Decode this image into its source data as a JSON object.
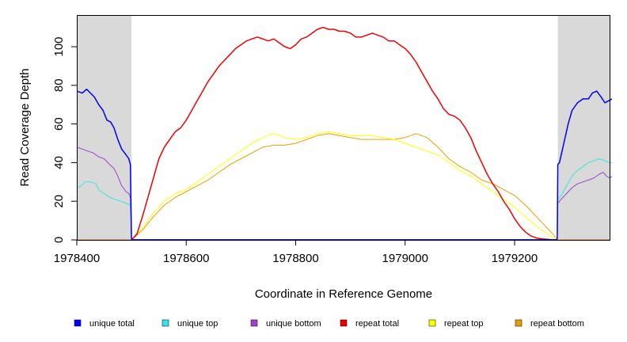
{
  "chart_data": {
    "type": "line",
    "xlabel": "Coordinate in Reference Genome",
    "ylabel": "Read Coverage Depth",
    "xlim": [
      1978380,
      1979380
    ],
    "ylim": [
      0,
      115
    ],
    "x_ticks": [
      1978400,
      1978600,
      1978800,
      1979000,
      1979200
    ],
    "y_ticks": [
      0,
      20,
      40,
      60,
      80,
      100
    ],
    "shaded_regions": [
      [
        1978400,
        1978500
      ],
      [
        1979279,
        1979380
      ]
    ],
    "shade_color": "#d9d9d9",
    "legend_position": "bottom",
    "series": [
      {
        "name": "unique total",
        "color": "#0000ee",
        "width": 1.5,
        "points": [
          [
            1978400,
            77
          ],
          [
            1978410,
            76
          ],
          [
            1978418,
            78
          ],
          [
            1978425,
            76
          ],
          [
            1978432,
            74
          ],
          [
            1978440,
            70
          ],
          [
            1978448,
            67
          ],
          [
            1978455,
            62
          ],
          [
            1978462,
            61
          ],
          [
            1978468,
            58
          ],
          [
            1978475,
            52
          ],
          [
            1978482,
            47
          ],
          [
            1978490,
            44
          ],
          [
            1978495,
            42
          ],
          [
            1978498,
            39
          ],
          [
            1978500,
            0
          ],
          [
            1978501,
            0
          ],
          [
            1979278,
            0
          ],
          [
            1979279,
            39
          ],
          [
            1979282,
            40
          ],
          [
            1979290,
            50
          ],
          [
            1979298,
            60
          ],
          [
            1979305,
            67
          ],
          [
            1979315,
            71
          ],
          [
            1979325,
            73
          ],
          [
            1979335,
            73
          ],
          [
            1979342,
            76
          ],
          [
            1979350,
            77
          ],
          [
            1979358,
            74
          ],
          [
            1979365,
            71
          ],
          [
            1979372,
            72
          ],
          [
            1979378,
            73
          ]
        ]
      },
      {
        "name": "unique top",
        "color": "#33e5e5",
        "width": 1,
        "points": [
          [
            1978400,
            27
          ],
          [
            1978408,
            28
          ],
          [
            1978415,
            30
          ],
          [
            1978425,
            30
          ],
          [
            1978435,
            29
          ],
          [
            1978440,
            26
          ],
          [
            1978450,
            24
          ],
          [
            1978460,
            22
          ],
          [
            1978470,
            21
          ],
          [
            1978480,
            20
          ],
          [
            1978490,
            19
          ],
          [
            1978498,
            18
          ],
          [
            1978500,
            0
          ],
          [
            1979278,
            0
          ],
          [
            1979279,
            21
          ],
          [
            1979285,
            23
          ],
          [
            1979295,
            28
          ],
          [
            1979305,
            33
          ],
          [
            1979315,
            36
          ],
          [
            1979325,
            38
          ],
          [
            1979335,
            40
          ],
          [
            1979345,
            41
          ],
          [
            1979355,
            42
          ],
          [
            1979365,
            41
          ],
          [
            1979372,
            40
          ],
          [
            1979378,
            40
          ]
        ]
      },
      {
        "name": "unique bottom",
        "color": "#a040d0",
        "width": 1,
        "points": [
          [
            1978400,
            48
          ],
          [
            1978410,
            47
          ],
          [
            1978420,
            46
          ],
          [
            1978430,
            45
          ],
          [
            1978440,
            43
          ],
          [
            1978450,
            42
          ],
          [
            1978460,
            39
          ],
          [
            1978468,
            37
          ],
          [
            1978475,
            33
          ],
          [
            1978482,
            28
          ],
          [
            1978490,
            25
          ],
          [
            1978495,
            24
          ],
          [
            1978498,
            22
          ],
          [
            1978500,
            0
          ],
          [
            1979278,
            0
          ],
          [
            1979279,
            19
          ],
          [
            1979285,
            21
          ],
          [
            1979295,
            24
          ],
          [
            1979305,
            27
          ],
          [
            1979315,
            29
          ],
          [
            1979325,
            30
          ],
          [
            1979335,
            31
          ],
          [
            1979345,
            32
          ],
          [
            1979355,
            34
          ],
          [
            1979362,
            35
          ],
          [
            1979368,
            33
          ],
          [
            1979374,
            32
          ],
          [
            1979378,
            33
          ]
        ]
      },
      {
        "name": "repeat total",
        "color": "#ee0000",
        "width": 1.5,
        "points": [
          [
            1978500,
            0
          ],
          [
            1978510,
            3
          ],
          [
            1978520,
            12
          ],
          [
            1978530,
            22
          ],
          [
            1978540,
            32
          ],
          [
            1978550,
            42
          ],
          [
            1978560,
            48
          ],
          [
            1978570,
            52
          ],
          [
            1978580,
            56
          ],
          [
            1978590,
            58
          ],
          [
            1978600,
            62
          ],
          [
            1978610,
            67
          ],
          [
            1978620,
            72
          ],
          [
            1978630,
            77
          ],
          [
            1978640,
            82
          ],
          [
            1978650,
            86
          ],
          [
            1978660,
            90
          ],
          [
            1978670,
            93
          ],
          [
            1978680,
            96
          ],
          [
            1978690,
            99
          ],
          [
            1978700,
            101
          ],
          [
            1978710,
            103
          ],
          [
            1978720,
            104
          ],
          [
            1978730,
            105
          ],
          [
            1978740,
            104
          ],
          [
            1978750,
            103
          ],
          [
            1978760,
            104
          ],
          [
            1978770,
            102
          ],
          [
            1978780,
            100
          ],
          [
            1978790,
            99
          ],
          [
            1978800,
            101
          ],
          [
            1978810,
            104
          ],
          [
            1978820,
            105
          ],
          [
            1978830,
            107
          ],
          [
            1978840,
            109
          ],
          [
            1978850,
            110
          ],
          [
            1978860,
            109
          ],
          [
            1978870,
            109
          ],
          [
            1978880,
            108
          ],
          [
            1978890,
            108
          ],
          [
            1978900,
            107
          ],
          [
            1978910,
            105
          ],
          [
            1978920,
            105
          ],
          [
            1978930,
            106
          ],
          [
            1978940,
            107
          ],
          [
            1978950,
            106
          ],
          [
            1978960,
            105
          ],
          [
            1978970,
            103
          ],
          [
            1978980,
            103
          ],
          [
            1978990,
            101
          ],
          [
            1979000,
            99
          ],
          [
            1979010,
            96
          ],
          [
            1979020,
            92
          ],
          [
            1979030,
            87
          ],
          [
            1979040,
            82
          ],
          [
            1979050,
            77
          ],
          [
            1979060,
            73
          ],
          [
            1979070,
            68
          ],
          [
            1979080,
            65
          ],
          [
            1979090,
            64
          ],
          [
            1979100,
            62
          ],
          [
            1979110,
            58
          ],
          [
            1979120,
            53
          ],
          [
            1979130,
            46
          ],
          [
            1979140,
            40
          ],
          [
            1979150,
            34
          ],
          [
            1979160,
            29
          ],
          [
            1979170,
            25
          ],
          [
            1979180,
            20
          ],
          [
            1979190,
            16
          ],
          [
            1979200,
            11
          ],
          [
            1979210,
            7
          ],
          [
            1979220,
            4
          ],
          [
            1979230,
            2
          ],
          [
            1979240,
            1
          ],
          [
            1979250,
            0.5
          ],
          [
            1979260,
            0.3
          ],
          [
            1979270,
            0
          ],
          [
            1979278,
            0
          ]
        ]
      },
      {
        "name": "repeat top",
        "color": "#ffff00",
        "width": 1,
        "points": [
          [
            1978500,
            0
          ],
          [
            1978520,
            6
          ],
          [
            1978540,
            14
          ],
          [
            1978560,
            20
          ],
          [
            1978580,
            24
          ],
          [
            1978600,
            26
          ],
          [
            1978620,
            30
          ],
          [
            1978640,
            34
          ],
          [
            1978660,
            38
          ],
          [
            1978680,
            42
          ],
          [
            1978700,
            46
          ],
          [
            1978720,
            50
          ],
          [
            1978740,
            53
          ],
          [
            1978760,
            55
          ],
          [
            1978780,
            53
          ],
          [
            1978800,
            52
          ],
          [
            1978820,
            53
          ],
          [
            1978840,
            55
          ],
          [
            1978860,
            56
          ],
          [
            1978880,
            55
          ],
          [
            1978900,
            54
          ],
          [
            1978920,
            54
          ],
          [
            1978940,
            54
          ],
          [
            1978960,
            53
          ],
          [
            1978980,
            52
          ],
          [
            1979000,
            50
          ],
          [
            1979020,
            48
          ],
          [
            1979040,
            46
          ],
          [
            1979060,
            44
          ],
          [
            1979080,
            40
          ],
          [
            1979100,
            36
          ],
          [
            1979120,
            33
          ],
          [
            1979140,
            29
          ],
          [
            1979160,
            25
          ],
          [
            1979180,
            21
          ],
          [
            1979200,
            17
          ],
          [
            1979220,
            12
          ],
          [
            1979240,
            7
          ],
          [
            1979260,
            3
          ],
          [
            1979275,
            0
          ]
        ]
      },
      {
        "name": "repeat bottom",
        "color": "#e8a000",
        "width": 1,
        "points": [
          [
            1978500,
            0
          ],
          [
            1978520,
            5
          ],
          [
            1978540,
            12
          ],
          [
            1978560,
            18
          ],
          [
            1978580,
            22
          ],
          [
            1978600,
            25
          ],
          [
            1978620,
            28
          ],
          [
            1978640,
            31
          ],
          [
            1978660,
            35
          ],
          [
            1978680,
            39
          ],
          [
            1978700,
            42
          ],
          [
            1978720,
            45
          ],
          [
            1978740,
            48
          ],
          [
            1978760,
            49
          ],
          [
            1978780,
            49
          ],
          [
            1978800,
            50
          ],
          [
            1978820,
            52
          ],
          [
            1978840,
            54
          ],
          [
            1978860,
            55
          ],
          [
            1978880,
            54
          ],
          [
            1978900,
            53
          ],
          [
            1978920,
            52
          ],
          [
            1978940,
            52
          ],
          [
            1978960,
            52
          ],
          [
            1978980,
            52
          ],
          [
            1979000,
            53
          ],
          [
            1979020,
            55
          ],
          [
            1979040,
            53
          ],
          [
            1979060,
            48
          ],
          [
            1979080,
            42
          ],
          [
            1979100,
            38
          ],
          [
            1979120,
            35
          ],
          [
            1979140,
            31
          ],
          [
            1979160,
            29
          ],
          [
            1979180,
            26
          ],
          [
            1979200,
            23
          ],
          [
            1979220,
            18
          ],
          [
            1979240,
            12
          ],
          [
            1979260,
            6
          ],
          [
            1979270,
            3
          ],
          [
            1979278,
            0
          ]
        ]
      }
    ]
  }
}
